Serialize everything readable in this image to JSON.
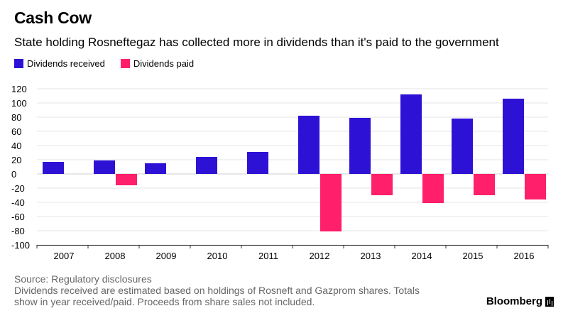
{
  "title": "Cash Cow",
  "subtitle": "State holding Rosneftegaz has collected more in dividends than it's paid to the government",
  "legend": [
    {
      "label": "Dividends received",
      "color": "#2d12d6"
    },
    {
      "label": "Dividends paid",
      "color": "#ff1f6b"
    }
  ],
  "footer": {
    "source": "Source: Regulatory disclosures",
    "note_line1": "Dividends received are estimated based on holdings of Rosneft and Gazprom shares. Totals",
    "note_line2": "show in year received/paid. Proceeds from share sales not included."
  },
  "brand": "Bloomberg",
  "chart_data": {
    "type": "bar",
    "categories": [
      "2007",
      "2008",
      "2009",
      "2010",
      "2011",
      "2012",
      "2013",
      "2014",
      "2015",
      "2016"
    ],
    "series": [
      {
        "name": "Dividends received",
        "color": "#2d12d6",
        "values": [
          17,
          19,
          15,
          24,
          31,
          82,
          79,
          112,
          78,
          106
        ]
      },
      {
        "name": "Dividends paid",
        "color": "#ff1f6b",
        "values": [
          null,
          -16,
          null,
          null,
          null,
          -81,
          -30,
          -41,
          -30,
          -36
        ]
      }
    ],
    "ylim": [
      -100,
      120
    ],
    "yticks": [
      -100,
      -80,
      -60,
      -40,
      -20,
      0,
      20,
      40,
      60,
      80,
      100,
      120
    ],
    "grid": true,
    "legend_position": "top-left"
  }
}
